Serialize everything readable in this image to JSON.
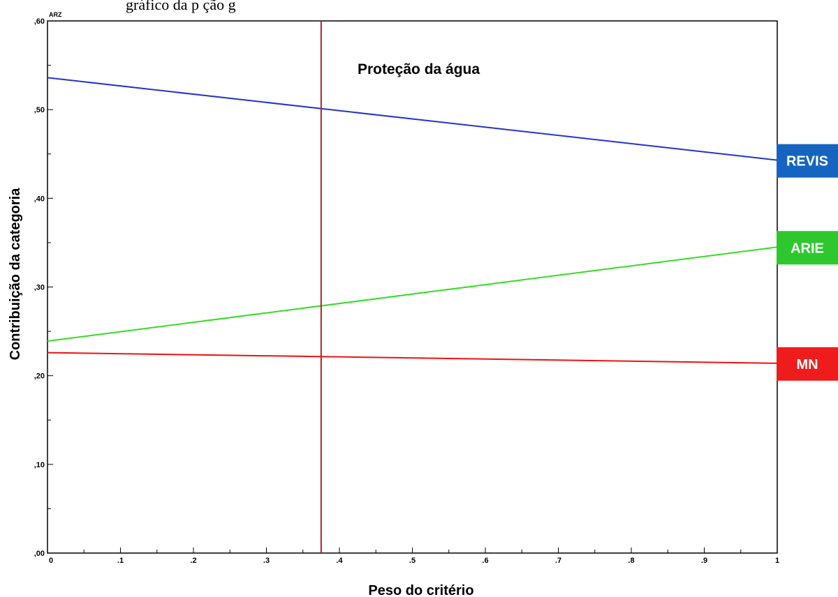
{
  "header_text": "gráfico     da     p   ção     g",
  "chart_data": {
    "type": "line",
    "title": "Proteção da água",
    "xlabel": "Peso do critério",
    "ylabel": "Contribuição da categoria",
    "corner_label": "ARZ",
    "xlim": [
      0,
      1
    ],
    "ylim": [
      0,
      0.6
    ],
    "x_ticks": [
      0,
      0.1,
      0.2,
      0.3,
      0.4,
      0.5,
      0.6,
      0.7,
      0.8,
      0.9,
      1
    ],
    "x_tick_labels": [
      "0",
      ".1",
      ".2",
      ".3",
      ".4",
      ".5",
      ".6",
      ".7",
      ".8",
      ".9",
      "1"
    ],
    "y_ticks": [
      0,
      0.1,
      0.2,
      0.3,
      0.4,
      0.5,
      0.6
    ],
    "y_tick_labels": [
      ",00",
      ",10",
      ",20",
      ",30",
      ",40",
      ",50",
      ",60"
    ],
    "reference_line_x": 0.375,
    "grid": false,
    "series": [
      {
        "name": "REVIS",
        "color": "#2233cc",
        "label_bg": "#1565c0",
        "label_color": "#ffffff",
        "x": [
          0,
          1
        ],
        "y": [
          0.536,
          0.443
        ]
      },
      {
        "name": "ARIE",
        "color": "#33dd22",
        "label_bg": "#2ec82e",
        "label_color": "#ffffff",
        "x": [
          0,
          1
        ],
        "y": [
          0.239,
          0.345
        ]
      },
      {
        "name": "MN",
        "color": "#ee1111",
        "label_bg": "#ee1c1c",
        "label_color": "#ffffff",
        "x": [
          0,
          1
        ],
        "y": [
          0.226,
          0.214
        ]
      }
    ],
    "reference_line_color": "#b22222"
  }
}
